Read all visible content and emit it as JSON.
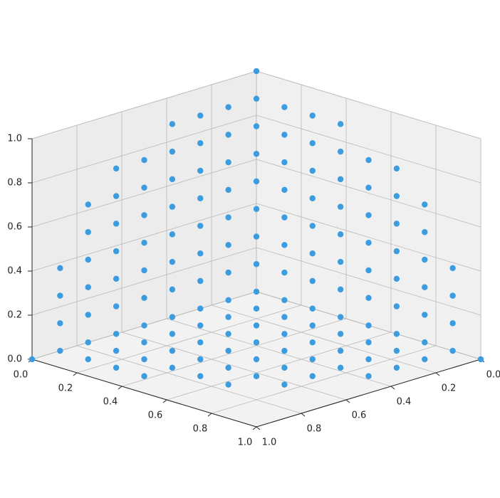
{
  "chart_data": {
    "type": "scatter3d",
    "color": "#3b9de0",
    "grid": true,
    "xlim": [
      0,
      1
    ],
    "ylim": [
      0,
      1
    ],
    "zlim": [
      0,
      1
    ],
    "xticks": [
      {
        "value": 0,
        "label": "0.0"
      },
      {
        "value": 0.2,
        "label": "0.2"
      },
      {
        "value": 0.4,
        "label": "0.4"
      },
      {
        "value": 0.6,
        "label": "0.6"
      },
      {
        "value": 0.8,
        "label": "0.8"
      },
      {
        "value": 1,
        "label": "1.0"
      }
    ],
    "yticks": [
      {
        "value": 0,
        "label": "0.0"
      },
      {
        "value": 0.2,
        "label": "0.2"
      },
      {
        "value": 0.4,
        "label": "0.4"
      },
      {
        "value": 0.6,
        "label": "0.6"
      },
      {
        "value": 0.8,
        "label": "0.8"
      },
      {
        "value": 1,
        "label": "1.0"
      }
    ],
    "zticks": [
      {
        "value": 0,
        "label": "0.0"
      },
      {
        "value": 0.2,
        "label": "0.2"
      },
      {
        "value": 0.4,
        "label": "0.4"
      },
      {
        "value": 0.6,
        "label": "0.6"
      },
      {
        "value": 0.8,
        "label": "0.8"
      },
      {
        "value": 1,
        "label": "1.0"
      }
    ],
    "x": [
      0,
      0,
      0,
      0,
      0,
      0,
      0,
      0,
      0,
      0.125,
      0.125,
      0.125,
      0.125,
      0.125,
      0.125,
      0.125,
      0.125,
      0.25,
      0.25,
      0.25,
      0.25,
      0.25,
      0.25,
      0.25,
      0.25,
      0.375,
      0.375,
      0.375,
      0.375,
      0.375,
      0.375,
      0.375,
      0.375,
      0.5,
      0.5,
      0.5,
      0.5,
      0.5,
      0.5,
      0.5,
      0.625,
      0.625,
      0.625,
      0.625,
      0.625,
      0.625,
      0.625,
      0.75,
      0.75,
      0.75,
      0.75,
      0.75,
      0.75,
      0.875,
      0.875,
      0.875,
      0.875,
      1,
      0,
      0,
      0,
      0,
      0,
      0,
      0,
      0,
      0,
      0,
      0,
      0,
      0,
      0,
      0,
      0,
      0,
      0,
      0,
      0,
      0,
      0,
      0,
      0,
      0,
      0,
      0,
      0,
      0,
      0,
      0,
      0,
      0,
      0,
      0,
      0,
      0,
      0,
      0,
      0,
      0,
      0,
      0,
      0,
      0,
      0,
      0,
      0,
      0,
      0.125,
      0.25,
      0.375,
      0.5,
      0.625,
      0.75,
      0.875,
      0.125,
      0.25,
      0.375,
      0.5,
      0.625,
      0.75,
      0.875,
      0.125,
      0.25,
      0.375,
      0.5,
      0.625,
      0.75,
      0.875,
      0.125,
      0.25,
      0.375,
      0.5,
      0.625,
      0.75,
      0.125,
      0.25,
      0.375,
      0.5,
      0.625,
      0.75,
      0.125,
      0.25,
      0.375,
      0.5,
      0.625,
      0.125,
      0.25,
      0.375
    ],
    "y": [
      0,
      0.125,
      0.25,
      0.375,
      0.5,
      0.625,
      0.75,
      0.875,
      1,
      0,
      0.125,
      0.25,
      0.375,
      0.5,
      0.625,
      0.75,
      0.875,
      0,
      0.125,
      0.25,
      0.375,
      0.5,
      0.625,
      0.75,
      0.875,
      0,
      0.125,
      0.25,
      0.375,
      0.5,
      0.625,
      0.75,
      0.875,
      0,
      0.125,
      0.25,
      0.375,
      0.5,
      0.625,
      0.75,
      0,
      0.125,
      0.25,
      0.375,
      0.5,
      0.625,
      0.75,
      0,
      0.125,
      0.25,
      0.375,
      0.5,
      0.625,
      0,
      0.125,
      0.25,
      0.375,
      0,
      0,
      0.125,
      0.25,
      0.375,
      0.5,
      0.625,
      0.75,
      0.875,
      0,
      0.125,
      0.25,
      0.375,
      0.5,
      0.625,
      0.75,
      0.875,
      0,
      0.125,
      0.25,
      0.375,
      0.5,
      0.625,
      0.75,
      0.875,
      0,
      0.125,
      0.25,
      0.375,
      0.5,
      0.625,
      0.75,
      0,
      0.125,
      0.25,
      0.375,
      0.5,
      0.625,
      0.75,
      0,
      0.125,
      0.25,
      0.375,
      0.5,
      0.625,
      0,
      0.125,
      0.25,
      0.375,
      0,
      0,
      0,
      0,
      0,
      0,
      0,
      0,
      0,
      0,
      0,
      0,
      0,
      0,
      0,
      0,
      0,
      0,
      0,
      0,
      0,
      0,
      0,
      0,
      0,
      0,
      0,
      0,
      0,
      0,
      0,
      0,
      0,
      0,
      0,
      0,
      0,
      0,
      0,
      0,
      0,
      0
    ],
    "z": [
      0,
      0,
      0,
      0,
      0,
      0,
      0,
      0,
      0,
      0,
      0,
      0,
      0,
      0,
      0,
      0,
      0,
      0,
      0,
      0,
      0,
      0,
      0,
      0,
      0,
      0,
      0,
      0,
      0,
      0,
      0,
      0,
      0,
      0,
      0,
      0,
      0,
      0,
      0,
      0,
      0,
      0,
      0,
      0,
      0,
      0,
      0,
      0,
      0,
      0,
      0,
      0,
      0,
      0,
      0,
      0,
      0,
      0,
      0.125,
      0.125,
      0.125,
      0.125,
      0.125,
      0.125,
      0.125,
      0.125,
      0.25,
      0.25,
      0.25,
      0.25,
      0.25,
      0.25,
      0.25,
      0.25,
      0.375,
      0.375,
      0.375,
      0.375,
      0.375,
      0.375,
      0.375,
      0.375,
      0.5,
      0.5,
      0.5,
      0.5,
      0.5,
      0.5,
      0.5,
      0.625,
      0.625,
      0.625,
      0.625,
      0.625,
      0.625,
      0.625,
      0.75,
      0.75,
      0.75,
      0.75,
      0.75,
      0.75,
      0.875,
      0.875,
      0.875,
      0.875,
      1,
      0.125,
      0.125,
      0.125,
      0.125,
      0.125,
      0.125,
      0.125,
      0.25,
      0.25,
      0.25,
      0.25,
      0.25,
      0.25,
      0.25,
      0.375,
      0.375,
      0.375,
      0.375,
      0.375,
      0.375,
      0.375,
      0.5,
      0.5,
      0.5,
      0.5,
      0.5,
      0.5,
      0.625,
      0.625,
      0.625,
      0.625,
      0.625,
      0.625,
      0.75,
      0.75,
      0.75,
      0.75,
      0.75,
      0.875,
      0.875,
      0.875
    ]
  }
}
